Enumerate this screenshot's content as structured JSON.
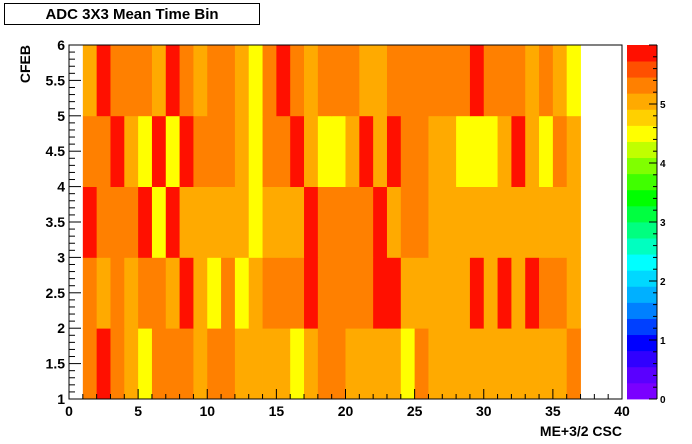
{
  "chart_data": {
    "type": "heatmap",
    "title": "ADC 3X3 Mean Time Bin",
    "xlabel": "ME+3/2 CSC",
    "ylabel": "CFEB",
    "xlim": [
      0,
      40
    ],
    "ylim": [
      1,
      6
    ],
    "zlim": [
      0,
      6
    ],
    "x_ticks": [
      0,
      5,
      10,
      15,
      20,
      25,
      30,
      35,
      40
    ],
    "y_ticks": [
      1,
      1.5,
      2,
      2.5,
      3,
      3.5,
      4,
      4.5,
      5,
      5.5,
      6
    ],
    "z_ticks": [
      0,
      1,
      2,
      3,
      4,
      5
    ],
    "x_bin_start": 1,
    "x_bin_width": 1,
    "y_bin_edges": [
      1,
      2,
      3,
      4,
      5,
      6
    ],
    "rows_from_bottom": [
      [
        5.3,
        5.9,
        5.3,
        5.1,
        4.5,
        5.3,
        5.3,
        5.3,
        5.1,
        5.3,
        5.3,
        5.1,
        5.1,
        5.1,
        5.1,
        4.5,
        5.1,
        5.3,
        5.3,
        5.1,
        5.1,
        5.1,
        5.1,
        4.5,
        5.3,
        5.1,
        5.1,
        5.1,
        5.1,
        5.1,
        5.1,
        5.1,
        5.1,
        5.1,
        5.1,
        5.3
      ],
      [
        5.3,
        5.1,
        5.3,
        5.1,
        5.3,
        5.3,
        5.1,
        5.9,
        5.1,
        4.5,
        5.3,
        4.5,
        5.1,
        5.3,
        5.3,
        5.3,
        5.9,
        5.3,
        5.3,
        5.3,
        5.3,
        5.9,
        5.9,
        5.1,
        5.1,
        5.1,
        5.1,
        5.1,
        5.9,
        5.1,
        5.9,
        5.1,
        5.9,
        5.3,
        5.3,
        5.1
      ],
      [
        5.9,
        5.3,
        5.3,
        5.3,
        5.9,
        4.5,
        5.9,
        5.1,
        5.1,
        5.1,
        5.1,
        5.1,
        4.5,
        5.1,
        5.1,
        5.1,
        5.9,
        5.3,
        5.3,
        5.3,
        5.3,
        5.9,
        5.1,
        5.3,
        5.3,
        5.1,
        5.1,
        5.1,
        5.1,
        5.1,
        5.1,
        5.1,
        5.1,
        5.1,
        5.1,
        5.1
      ],
      [
        5.3,
        5.3,
        5.9,
        5.1,
        4.5,
        5.9,
        4.5,
        5.9,
        5.3,
        5.3,
        5.3,
        5.1,
        4.5,
        5.3,
        5.3,
        5.9,
        5.1,
        4.5,
        4.5,
        5.1,
        5.9,
        5.1,
        5.9,
        5.3,
        5.3,
        5.1,
        5.1,
        4.5,
        4.5,
        4.5,
        5.1,
        5.9,
        5.1,
        4.5,
        5.3,
        5.1
      ],
      [
        5.1,
        5.9,
        5.3,
        5.3,
        5.3,
        5.1,
        5.9,
        5.3,
        5.1,
        5.3,
        5.3,
        5.1,
        4.5,
        5.3,
        5.9,
        5.3,
        5.1,
        5.3,
        5.3,
        5.3,
        5.1,
        5.1,
        5.3,
        5.3,
        5.3,
        5.3,
        5.3,
        5.3,
        5.9,
        5.3,
        5.3,
        5.3,
        5.1,
        5.3,
        5.1,
        4.5
      ]
    ],
    "palette": [
      "#7a00ff",
      "#5a00ff",
      "#3000ff",
      "#0000ff",
      "#0040ff",
      "#0080ff",
      "#00b0ff",
      "#00d8ff",
      "#00ffff",
      "#00ffc0",
      "#00ff80",
      "#00ff40",
      "#00ff00",
      "#40ff00",
      "#80ff00",
      "#c0ff00",
      "#ffff00",
      "#ffd000",
      "#ffaa00",
      "#ff8000",
      "#ff5000",
      "#ff1000"
    ]
  }
}
